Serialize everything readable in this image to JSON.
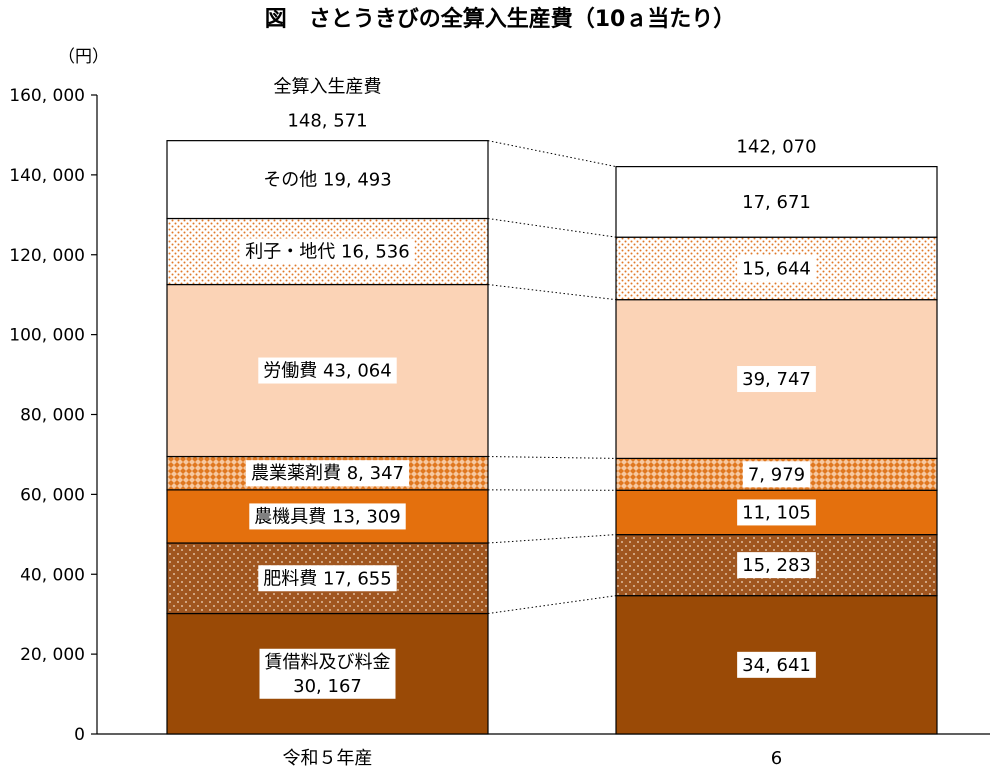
{
  "chart_data": {
    "type": "bar",
    "stacked": true,
    "title": "図　さとうきびの全算入生産費（10ａ当たり）",
    "y_unit": "（円）",
    "ylim": [
      0,
      160000
    ],
    "yticks": [
      0,
      20000,
      40000,
      60000,
      80000,
      100000,
      120000,
      140000,
      160000
    ],
    "ytick_labels": [
      "0",
      "20, 000",
      "40, 000",
      "60, 000",
      "80, 000",
      "100, 000",
      "120, 000",
      "140, 000",
      "160, 000"
    ],
    "categories": [
      "令和５年産",
      "6"
    ],
    "totals": [
      148571,
      142070
    ],
    "total_labels": [
      "148, 571",
      "142, 070"
    ],
    "total_caption": "全算入生産費",
    "grid": false,
    "series": [
      {
        "name": "賃借料及び料金",
        "values": [
          30167,
          34641
        ],
        "value_labels": [
          "30, 167",
          "34, 641"
        ],
        "color": "#9a4a06",
        "pattern": "solid"
      },
      {
        "name": "肥料費",
        "values": [
          17655,
          15283
        ],
        "value_labels": [
          "17, 655",
          "15, 283"
        ],
        "color": "#a0561f",
        "pattern": "dots-light"
      },
      {
        "name": "農機具費",
        "values": [
          13309,
          11105
        ],
        "value_labels": [
          "13, 309",
          "11, 105"
        ],
        "color": "#e4700d",
        "pattern": "solid"
      },
      {
        "name": "農業薬剤費",
        "values": [
          8347,
          7979
        ],
        "value_labels": [
          "8, 347",
          "7, 979"
        ],
        "color": "#e07820",
        "pattern": "diamond"
      },
      {
        "name": "労働費",
        "values": [
          43064,
          39747
        ],
        "value_labels": [
          "43, 064",
          "39, 747"
        ],
        "color": "#fbd3b6",
        "pattern": "solid"
      },
      {
        "name": "利子・地代",
        "values": [
          16536,
          15644
        ],
        "value_labels": [
          "16, 536",
          "15, 644"
        ],
        "color": "#e8843a",
        "pattern": "dots-dark"
      },
      {
        "name": "その他",
        "values": [
          19493,
          17671
        ],
        "value_labels": [
          "19, 493",
          "17, 671"
        ],
        "color": "#ffffff",
        "pattern": "solid"
      }
    ]
  }
}
